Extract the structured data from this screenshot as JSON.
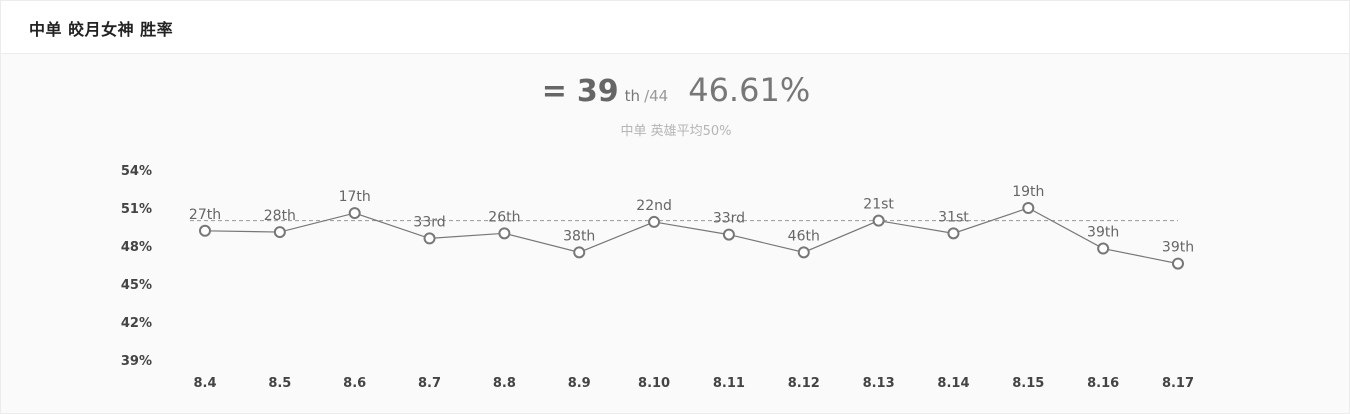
{
  "header": {
    "title": "中单 皎月女神 胜率"
  },
  "summary": {
    "trend_icon": "=",
    "rank": "39",
    "rank_suffix": "th",
    "rank_total": "/44",
    "win_rate": "46.61%",
    "subtitle": "中单 英雄平均50%"
  },
  "chart_data": {
    "type": "line",
    "categories": [
      "8.4",
      "8.5",
      "8.6",
      "8.7",
      "8.8",
      "8.9",
      "8.10",
      "8.11",
      "8.12",
      "8.13",
      "8.14",
      "8.15",
      "8.16",
      "8.17"
    ],
    "series": [
      {
        "values": [
          49.2,
          49.1,
          50.6,
          48.6,
          49.0,
          47.5,
          49.9,
          48.9,
          47.5,
          50.0,
          49.0,
          51.0,
          47.8,
          46.61
        ]
      }
    ],
    "point_labels": [
      "27th",
      "28th",
      "17th",
      "33rd",
      "26th",
      "38th",
      "22nd",
      "33rd",
      "46th",
      "21st",
      "31st",
      "19th",
      "39th",
      "39th"
    ],
    "reference_line": 50,
    "y_ticks": [
      "54%",
      "51%",
      "48%",
      "45%",
      "42%",
      "39%"
    ],
    "ylim": [
      39,
      54
    ],
    "grid": false,
    "colors": {
      "line": "#777777",
      "marker_fill": "#ffffff",
      "reference": "#999999"
    }
  }
}
